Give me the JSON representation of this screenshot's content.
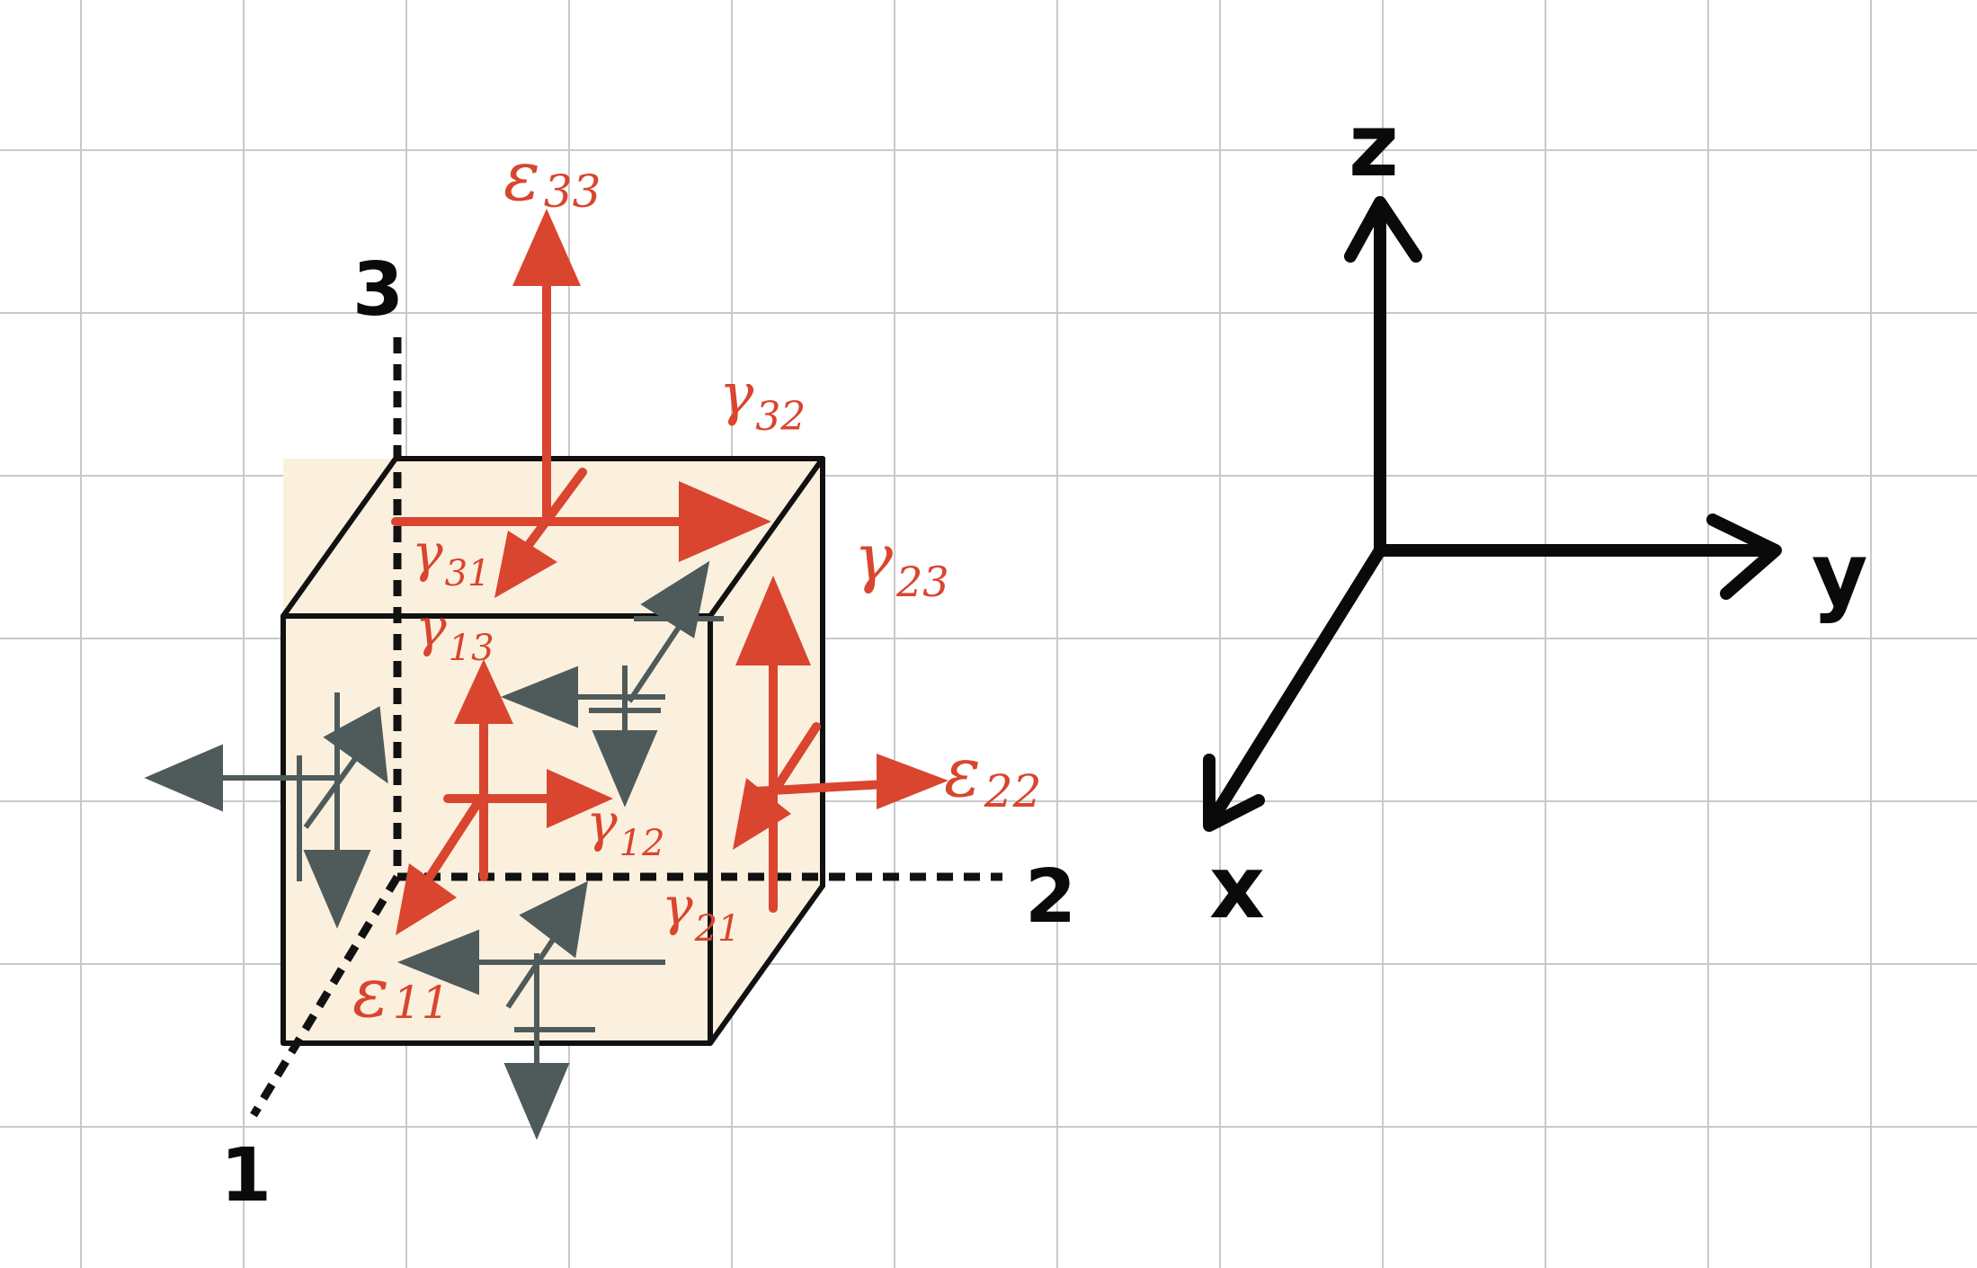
{
  "colors": {
    "grid": "#c9c9c9",
    "cube_fill": "#fbf0de",
    "edge": "#111111",
    "strain_red": "#d9452e",
    "shear_gray": "#4f5a5a",
    "axis_black": "#0a0a0a"
  },
  "material_axes": {
    "axis_1": "1",
    "axis_2": "2",
    "axis_3": "3"
  },
  "global_axes": {
    "x": "x",
    "y": "y",
    "z": "z"
  },
  "strains": {
    "e11": {
      "sym": "ε",
      "sub": "11"
    },
    "e22": {
      "sym": "ε",
      "sub": "22"
    },
    "e33": {
      "sym": "ε",
      "sub": "33"
    }
  },
  "shears": {
    "g12": {
      "sym": "γ",
      "sub": "12"
    },
    "g13": {
      "sym": "γ",
      "sub": "13"
    },
    "g21": {
      "sym": "γ",
      "sub": "21"
    },
    "g23": {
      "sym": "γ",
      "sub": "23"
    },
    "g31": {
      "sym": "γ",
      "sub": "31"
    },
    "g32": {
      "sym": "γ",
      "sub": "32"
    }
  }
}
